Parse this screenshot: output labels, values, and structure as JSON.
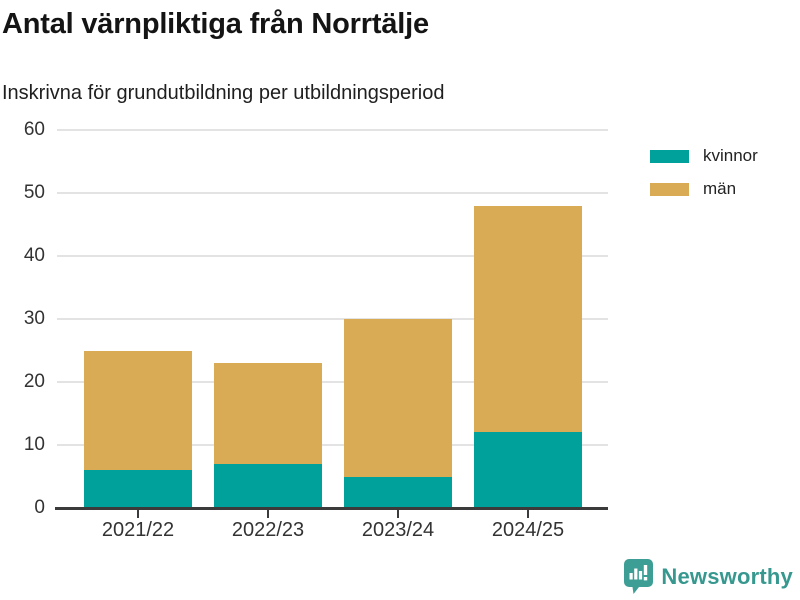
{
  "title": "Antal värnpliktiga från Norrtälje",
  "subtitle": "Inskrivna för grundutbildning per utbildningsperiod",
  "chart_data": {
    "type": "bar",
    "stacked": true,
    "title": "Antal värnpliktiga från Norrtälje",
    "subtitle": "Inskrivna för grundutbildning per utbildningsperiod",
    "categories": [
      "2021/22",
      "2022/23",
      "2023/24",
      "2024/25"
    ],
    "series": [
      {
        "name": "kvinnor",
        "color": "#00a19a",
        "values": [
          6,
          7,
          5,
          12
        ]
      },
      {
        "name": "män",
        "color": "#d9ab55",
        "values": [
          19,
          16,
          25,
          36
        ]
      }
    ],
    "stack_totals": [
      25,
      23,
      30,
      48
    ],
    "xlabel": "",
    "ylabel": "",
    "ylim": [
      0,
      60
    ],
    "yticks": [
      0,
      10,
      20,
      30,
      40,
      50,
      60
    ],
    "grid": "horizontal",
    "legend_position": "right-top"
  },
  "legend": {
    "items": [
      {
        "label": "kvinnor",
        "color": "#00a19a"
      },
      {
        "label": "män",
        "color": "#d9ab55"
      }
    ]
  },
  "branding": {
    "name": "Newsworthy",
    "color": "#36988f",
    "icon": "newsworthy-chart-bubble-icon",
    "icon_color": "#3d9e95"
  },
  "colors": {
    "axis": "#3b3b3b",
    "gridline": "#e3e3e3",
    "tick_label": "#333333",
    "title_text": "#141414"
  }
}
